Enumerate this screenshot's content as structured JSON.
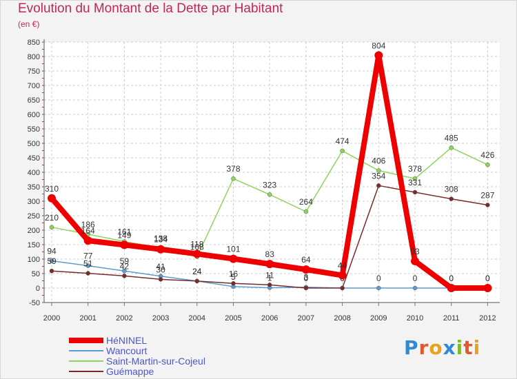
{
  "title": "Evolution du Montant de la Dette par Habitant",
  "subtitle": "(en €)",
  "logo": {
    "text": "Proxiti",
    "letters": [
      {
        "ch": "P",
        "color": "#2f8ad6"
      },
      {
        "ch": "r",
        "color": "#e05a2a"
      },
      {
        "ch": "o",
        "color": "#e9a21c"
      },
      {
        "ch": "x",
        "color": "#2f8ad6"
      },
      {
        "ch": "i",
        "color": "#7cbb2e"
      },
      {
        "ch": "t",
        "color": "#e05a2a"
      },
      {
        "ch": "i",
        "color": "#e9a21c"
      }
    ]
  },
  "chart_data": {
    "type": "line",
    "categories": [
      "2000",
      "2001",
      "2002",
      "2003",
      "2004",
      "2005",
      "2006",
      "2007",
      "2008",
      "2009",
      "2010",
      "2011",
      "2012"
    ],
    "ylim": [
      -50,
      850
    ],
    "yticks": [
      -50,
      0,
      50,
      100,
      150,
      200,
      250,
      300,
      350,
      400,
      450,
      500,
      550,
      600,
      650,
      700,
      750,
      800,
      850
    ],
    "grid": true,
    "legend_position": "bottom-left",
    "series": [
      {
        "name": "Wancourt",
        "color": "#5b9bd0",
        "values": [
          94,
          77,
          59,
          41,
          24,
          5,
          1,
          3,
          0,
          0,
          0,
          0,
          0
        ],
        "labels": [
          "94",
          "77",
          "59",
          "41",
          "24",
          "5",
          "1",
          "3",
          "0",
          "0",
          "0",
          "0",
          "0"
        ]
      },
      {
        "name": "Saint-Martin-sur-Cojeul",
        "color": "#8fd45a",
        "values": [
          210,
          186,
          161,
          138,
          108,
          378,
          323,
          264,
          474,
          406,
          378,
          485,
          426
        ],
        "labels": [
          "210",
          "186",
          "161",
          "138",
          "108",
          "378",
          "323",
          "264",
          "474",
          "406",
          "378",
          "485",
          "426"
        ]
      },
      {
        "name": "Guémappe",
        "color": "#7a2a2a",
        "values": [
          59,
          51,
          42,
          30,
          24,
          16,
          11,
          0,
          0,
          354,
          331,
          308,
          287
        ],
        "labels": [
          "59",
          "51",
          "42",
          "30",
          "24",
          "16",
          "11",
          "0",
          "0",
          "354",
          "331",
          "308",
          "287"
        ]
      },
      {
        "name": "HéNINEL",
        "color": "#ee0000",
        "values": [
          310,
          164,
          149,
          134,
          118,
          101,
          83,
          64,
          44,
          804,
          93,
          0,
          0
        ],
        "labels": [
          "310",
          "164",
          "149",
          "134",
          "118",
          "101",
          "83",
          "64",
          "44",
          "804",
          "93",
          "0",
          "0"
        ]
      }
    ]
  }
}
